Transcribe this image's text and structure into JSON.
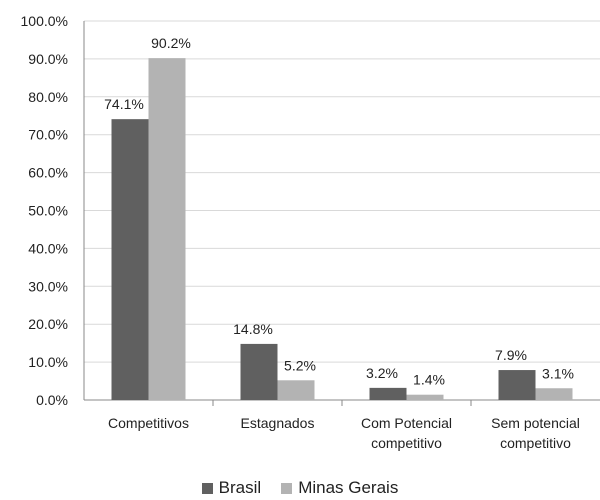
{
  "chart_data": {
    "type": "bar",
    "categories": [
      [
        "Competitivos"
      ],
      [
        "Estagnados"
      ],
      [
        "Com Potencial",
        "competitivo"
      ],
      [
        "Sem potencial",
        "competitivo"
      ]
    ],
    "series": [
      {
        "name": "Brasil",
        "color": "#606060",
        "values": [
          74.1,
          14.8,
          3.2,
          7.9
        ],
        "labels": [
          "74.1%",
          "14.8%",
          "3.2%",
          "7.9%"
        ]
      },
      {
        "name": "Minas Gerais",
        "color": "#b3b3b3",
        "values": [
          90.2,
          5.2,
          1.4,
          3.1
        ],
        "labels": [
          "90.2%",
          "5.2%",
          "1.4%",
          "3.1%"
        ]
      }
    ],
    "yticks": [
      "0.0%",
      "10.0%",
      "20.0%",
      "30.0%",
      "40.0%",
      "50.0%",
      "60.0%",
      "70.0%",
      "80.0%",
      "90.0%",
      "100.0%"
    ],
    "ylim": [
      0,
      100
    ],
    "grid": true,
    "legend_position": "bottom",
    "xlabel": "",
    "ylabel": ""
  }
}
